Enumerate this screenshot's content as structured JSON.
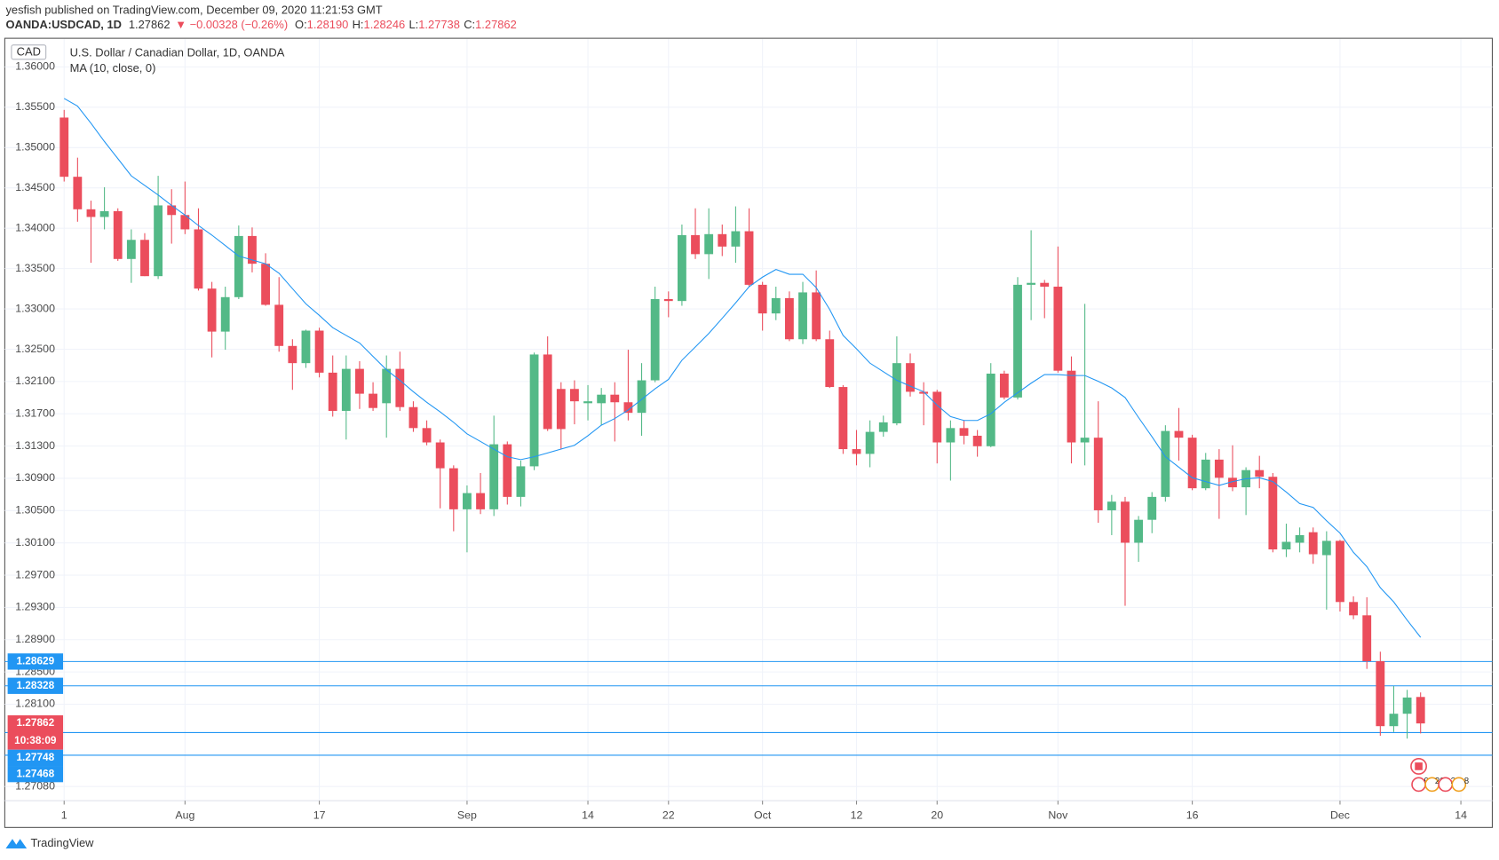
{
  "header": {
    "author_line": "yesfish published on TradingView.com, December 09, 2020 11:21:53 GMT",
    "symbol": "OANDA:USDCAD, 1D",
    "last": "1.27862",
    "change": "▼ −0.00328 (−0.26%)",
    "ohlc": [
      {
        "key": "O:",
        "value": "1.28190"
      },
      {
        "key": "H:",
        "value": "1.28246"
      },
      {
        "key": "L:",
        "value": "1.27738"
      },
      {
        "key": "C:",
        "value": "1.27862"
      }
    ]
  },
  "chart_data": {
    "type": "candlestick",
    "title": "U.S. Dollar / Canadian Dollar, 1D, OANDA",
    "currency": "CAD",
    "indicator": "MA (10, close, 0)",
    "countdown": "10:38:09",
    "up_color": "#53b987",
    "down_color": "#eb4d5c",
    "ma_color": "#2196f3",
    "level_color": "#2196f3",
    "grid": true,
    "xlim": [
      -4.42,
      106.34
    ],
    "ylim": [
      1.26904,
      1.36343
    ],
    "xticks": [
      {
        "value": 0,
        "label": "1"
      },
      {
        "value": 9,
        "label": "Aug"
      },
      {
        "value": 19,
        "label": "17"
      },
      {
        "value": 30,
        "label": "Sep"
      },
      {
        "value": 39,
        "label": "14"
      },
      {
        "value": 45,
        "label": "22"
      },
      {
        "value": 52,
        "label": "Oct"
      },
      {
        "value": 59,
        "label": "12"
      },
      {
        "value": 65,
        "label": "20"
      },
      {
        "value": 74,
        "label": "Nov"
      },
      {
        "value": 84,
        "label": "16"
      },
      {
        "value": 95,
        "label": "Dec"
      },
      {
        "value": 104,
        "label": "14"
      }
    ],
    "yticks": [
      {
        "value": 1.36,
        "label": "1.36000"
      },
      {
        "value": 1.355,
        "label": "1.35500"
      },
      {
        "value": 1.35,
        "label": "1.35000"
      },
      {
        "value": 1.345,
        "label": "1.34500"
      },
      {
        "value": 1.34,
        "label": "1.34000"
      },
      {
        "value": 1.335,
        "label": "1.33500"
      },
      {
        "value": 1.33,
        "label": "1.33000"
      },
      {
        "value": 1.325,
        "label": "1.32500"
      },
      {
        "value": 1.321,
        "label": "1.32100"
      },
      {
        "value": 1.317,
        "label": "1.31700"
      },
      {
        "value": 1.313,
        "label": "1.31300"
      },
      {
        "value": 1.309,
        "label": "1.30900"
      },
      {
        "value": 1.305,
        "label": "1.30500"
      },
      {
        "value": 1.301,
        "label": "1.30100"
      },
      {
        "value": 1.297,
        "label": "1.29700"
      },
      {
        "value": 1.293,
        "label": "1.29300"
      },
      {
        "value": 1.289,
        "label": "1.28900"
      },
      {
        "value": 1.285,
        "label": "1.28500"
      },
      {
        "value": 1.281,
        "label": "1.28100"
      },
      {
        "value": 1.2708,
        "label": "1.27080"
      }
    ],
    "open": [
      1.35372,
      1.34638,
      1.34235,
      1.3414,
      1.34212,
      1.33619,
      1.33856,
      1.33406,
      1.34283,
      1.34164,
      1.33986,
      1.33252,
      1.32719,
      1.33146,
      1.33904,
      1.3356,
      1.33051,
      1.32541,
      1.32328,
      1.32731,
      1.3221,
      1.31736,
      1.32257,
      1.31949,
      1.31831,
      1.32257,
      1.31783,
      1.31523,
      1.31345,
      1.31025,
      1.30516,
      1.30717,
      1.30516,
      1.31322,
      1.3067,
      1.31049,
      1.32435,
      1.32008,
      1.32008,
      1.31831,
      1.31831,
      1.31937,
      1.31843,
      1.31712,
      1.32115,
      1.33122,
      1.33098,
      1.33915,
      1.33679,
      1.33927,
      1.33773,
      1.33963,
      1.33299,
      1.32944,
      1.33134,
      1.32624,
      1.33205,
      1.32624,
      1.32032,
      1.31262,
      1.31203,
      1.31476,
      1.31582,
      1.32328,
      1.31973,
      1.31973,
      1.31345,
      1.31523,
      1.31428,
      1.31298,
      1.32198,
      1.31902,
      1.33299,
      1.33323,
      1.33276,
      1.32234,
      1.31345,
      1.31404,
      1.30504,
      1.30611,
      1.30102,
      1.30386,
      1.3067,
      1.31487,
      1.31404,
      1.30777,
      1.31132,
      1.30907,
      1.30789,
      1.31002,
      1.30919,
      1.30019,
      1.30102,
      1.30232,
      1.29948,
      1.30125,
      1.29367,
      1.29202,
      1.28633,
      1.27828,
      1.27982,
      1.2819
    ],
    "high": [
      1.35467,
      1.34875,
      1.34342,
      1.34508,
      1.34247,
      1.33986,
      1.33939,
      1.3465,
      1.34484,
      1.34579,
      1.34247,
      1.33335,
      1.33276,
      1.34034,
      1.3401,
      1.3369,
      1.33394,
      1.32624,
      1.32743,
      1.32767,
      1.32423,
      1.32423,
      1.32352,
      1.32091,
      1.32423,
      1.3247,
      1.31855,
      1.31618,
      1.31381,
      1.31061,
      1.30812,
      1.30966,
      1.31677,
      1.31357,
      1.3112,
      1.32459,
      1.3266,
      1.32091,
      1.32115,
      1.32056,
      1.3202,
      1.32091,
      1.32494,
      1.32328,
      1.33276,
      1.33217,
      1.34046,
      1.34247,
      1.34247,
      1.34046,
      1.34271,
      1.34247,
      1.33335,
      1.33276,
      1.33217,
      1.33335,
      1.33477,
      1.32731,
      1.32056,
      1.31499,
      1.31618,
      1.31677,
      1.3266,
      1.32447,
      1.32091,
      1.31997,
      1.31618,
      1.31618,
      1.31499,
      1.32328,
      1.32234,
      1.33394,
      1.33975,
      1.33359,
      1.33773,
      1.32411,
      1.33063,
      1.31855,
      1.30694,
      1.3067,
      1.30433,
      1.30729,
      1.31558,
      1.31772,
      1.3144,
      1.31215,
      1.31262,
      1.3131,
      1.31037,
      1.31179,
      1.30966,
      1.30338,
      1.30291,
      1.30291,
      1.30244,
      1.30137,
      1.29438,
      1.29426,
      1.28751,
      1.28325,
      1.28278,
      1.28246
    ],
    "low": [
      1.34579,
      1.34081,
      1.33572,
      1.33986,
      1.33596,
      1.33323,
      1.33406,
      1.33371,
      1.33809,
      1.33927,
      1.33228,
      1.32399,
      1.32494,
      1.33122,
      1.33453,
      1.33039,
      1.3247,
      1.31997,
      1.32269,
      1.32151,
      1.31665,
      1.31381,
      1.3176,
      1.31736,
      1.31404,
      1.31736,
      1.31476,
      1.3131,
      1.30528,
      1.30244,
      1.29983,
      1.30457,
      1.30433,
      1.30575,
      1.30552,
      1.31002,
      1.31487,
      1.31262,
      1.3157,
      1.31618,
      1.31558,
      1.31357,
      1.31618,
      1.31428,
      1.32091,
      1.32897,
      1.33039,
      1.33619,
      1.33371,
      1.33655,
      1.33572,
      1.33276,
      1.32731,
      1.32861,
      1.32601,
      1.32565,
      1.32601,
      1.3202,
      1.31203,
      1.31061,
      1.31037,
      1.31416,
      1.31558,
      1.31914,
      1.31558,
      1.31085,
      1.30872,
      1.31322,
      1.31168,
      1.31286,
      1.31878,
      1.31878,
      1.32861,
      1.32885,
      1.3221,
      1.31085,
      1.31061,
      1.3035,
      1.30196,
      1.2932,
      1.29865,
      1.3022,
      1.30611,
      1.3112,
      1.30753,
      1.30753,
      1.30398,
      1.30741,
      1.30445,
      1.30777,
      1.29983,
      1.29924,
      1.29983,
      1.29841,
      1.29273,
      1.29249,
      1.29154,
      1.28538,
      1.27709,
      1.27756,
      1.27674,
      1.27738
    ],
    "close": [
      1.34638,
      1.34235,
      1.3414,
      1.34212,
      1.33619,
      1.33856,
      1.33406,
      1.34283,
      1.34164,
      1.33986,
      1.33252,
      1.32719,
      1.33146,
      1.33904,
      1.3356,
      1.33051,
      1.32541,
      1.32328,
      1.32731,
      1.3221,
      1.31736,
      1.32257,
      1.31949,
      1.31772,
      1.32257,
      1.31783,
      1.31523,
      1.31345,
      1.31025,
      1.30516,
      1.30717,
      1.30516,
      1.31322,
      1.3067,
      1.31049,
      1.32435,
      1.31511,
      1.31511,
      1.31855,
      1.31855,
      1.31937,
      1.31843,
      1.31712,
      1.32115,
      1.33122,
      1.33098,
      1.33915,
      1.33679,
      1.33927,
      1.33773,
      1.33963,
      1.33299,
      1.32944,
      1.33134,
      1.32624,
      1.33205,
      1.32624,
      1.32032,
      1.31262,
      1.31203,
      1.31476,
      1.31594,
      1.32328,
      1.31973,
      1.31949,
      1.31345,
      1.31523,
      1.31428,
      1.31298,
      1.32198,
      1.31902,
      1.33299,
      1.33323,
      1.33276,
      1.32234,
      1.31345,
      1.31404,
      1.30504,
      1.30611,
      1.30102,
      1.30386,
      1.3067,
      1.31487,
      1.31404,
      1.30777,
      1.31132,
      1.30907,
      1.30789,
      1.31002,
      1.30919,
      1.30019,
      1.30113,
      1.30196,
      1.29959,
      1.30125,
      1.29367,
      1.29202,
      1.28633,
      1.27828,
      1.27982,
      1.28183,
      1.27862
    ],
    "ma": [
      1.35609,
      1.35514,
      1.35301,
      1.35076,
      1.34863,
      1.3465,
      1.34531,
      1.34413,
      1.34283,
      1.34164,
      1.34034,
      1.33915,
      1.33785,
      1.33655,
      1.33607,
      1.3356,
      1.33442,
      1.33252,
      1.33063,
      1.3292,
      1.32767,
      1.32672,
      1.32577,
      1.32411,
      1.32245,
      1.32115,
      1.31973,
      1.31843,
      1.31724,
      1.31594,
      1.31452,
      1.31357,
      1.31262,
      1.31168,
      1.31132,
      1.31168,
      1.31215,
      1.31262,
      1.3131,
      1.31428,
      1.31558,
      1.31641,
      1.31748,
      1.31878,
      1.32009,
      1.32127,
      1.32364,
      1.3253,
      1.32695,
      1.32885,
      1.33075,
      1.33276,
      1.33394,
      1.33489,
      1.3343,
      1.3343,
      1.33264,
      1.32992,
      1.32672,
      1.32506,
      1.32328,
      1.32222,
      1.32115,
      1.32044,
      1.31973,
      1.31807,
      1.31665,
      1.31618,
      1.31618,
      1.31701,
      1.31843,
      1.31961,
      1.3208,
      1.32186,
      1.32186,
      1.32174,
      1.32174,
      1.32103,
      1.3202,
      1.31902,
      1.31653,
      1.31416,
      1.31168,
      1.31037,
      1.30907,
      1.3086,
      1.30812,
      1.3086,
      1.30895,
      1.30907,
      1.3086,
      1.30729,
      1.30587,
      1.3054,
      1.30374,
      1.3022,
      1.29983,
      1.29806,
      1.29545,
      1.29367,
      1.29142,
      1.28929
    ],
    "levels": [
      1.28629,
      1.28328,
      1.27748,
      1.27468
    ],
    "event_labels": [
      "9",
      "20",
      "2",
      "8"
    ]
  },
  "footer": {
    "brand": "TradingView"
  }
}
